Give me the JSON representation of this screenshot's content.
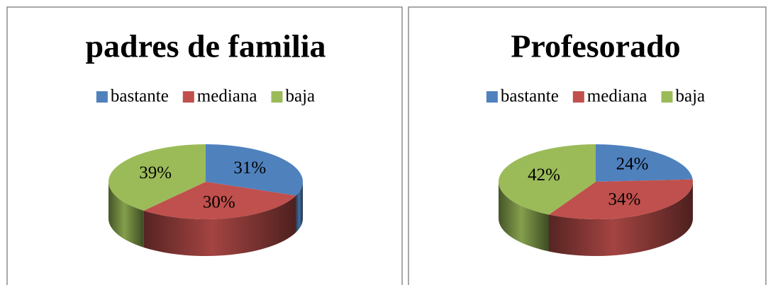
{
  "chart_data": [
    {
      "type": "pie",
      "title": "padres de familia",
      "categories": [
        "bastante",
        "mediana",
        "baja"
      ],
      "values": [
        31,
        30,
        39
      ],
      "value_labels": [
        "31%",
        "30%",
        "39%"
      ],
      "colors": [
        "#4f81bd",
        "#c0504d",
        "#9bbb59"
      ],
      "legend": "top"
    },
    {
      "type": "pie",
      "title": "Profesorado",
      "categories": [
        "bastante",
        "mediana",
        "baja"
      ],
      "values": [
        24,
        34,
        42
      ],
      "value_labels": [
        "24%",
        "34%",
        "42%"
      ],
      "colors": [
        "#4f81bd",
        "#c0504d",
        "#9bbb59"
      ],
      "legend": "top"
    }
  ]
}
